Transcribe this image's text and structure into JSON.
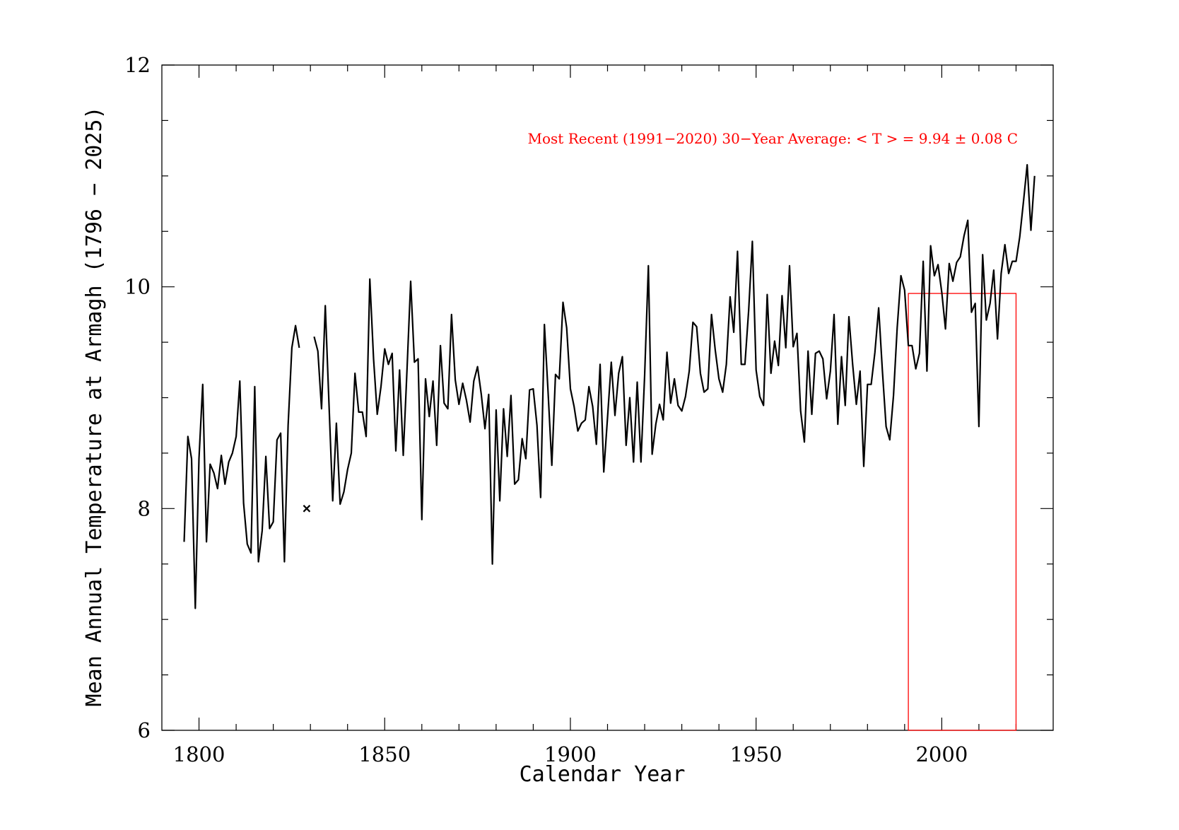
{
  "chart_data": {
    "type": "line",
    "title": "",
    "xlabel": "Calendar Year",
    "ylabel": "Mean Annual Temperature at Armagh (1796 − 2025)",
    "xlim": [
      1790,
      2030
    ],
    "ylim": [
      6,
      12
    ],
    "xticks": [
      "1800",
      "1850",
      "1900",
      "1950",
      "2000"
    ],
    "yticks": [
      "6",
      "8",
      "10",
      "12"
    ],
    "xtick_values": [
      1800,
      1850,
      1900,
      1950,
      2000
    ],
    "ytick_values": [
      6,
      8,
      10,
      12
    ],
    "grid": false,
    "series": [
      {
        "name": "1796-1827",
        "color": "#000000",
        "x": [
          1796,
          1797,
          1798,
          1799,
          1800,
          1801,
          1802,
          1803,
          1804,
          1805,
          1806,
          1807,
          1808,
          1809,
          1810,
          1811,
          1812,
          1813,
          1814,
          1815,
          1816,
          1817,
          1818,
          1819,
          1820,
          1821,
          1822,
          1823,
          1824,
          1825,
          1826,
          1827
        ],
        "values": [
          7.7,
          8.65,
          8.45,
          7.1,
          8.45,
          9.12,
          7.7,
          8.4,
          8.32,
          8.18,
          8.48,
          8.22,
          8.42,
          8.5,
          8.65,
          9.15,
          8.05,
          7.68,
          7.6,
          9.1,
          7.52,
          7.8,
          8.47,
          7.82,
          7.88,
          8.62,
          8.68,
          7.52,
          8.75,
          9.45,
          9.65,
          9.45
        ]
      },
      {
        "name": "1831-2025",
        "color": "#000000",
        "x": [
          1831,
          1832,
          1833,
          1834,
          1835,
          1836,
          1837,
          1838,
          1839,
          1840,
          1841,
          1842,
          1843,
          1844,
          1845,
          1846,
          1847,
          1848,
          1849,
          1850,
          1851,
          1852,
          1853,
          1854,
          1855,
          1856,
          1857,
          1858,
          1859,
          1860,
          1861,
          1862,
          1863,
          1864,
          1865,
          1866,
          1867,
          1868,
          1869,
          1870,
          1871,
          1872,
          1873,
          1874,
          1875,
          1876,
          1877,
          1878,
          1879,
          1880,
          1881,
          1882,
          1883,
          1884,
          1885,
          1886,
          1887,
          1888,
          1889,
          1890,
          1891,
          1892,
          1893,
          1894,
          1895,
          1896,
          1897,
          1898,
          1899,
          1900,
          1901,
          1902,
          1903,
          1904,
          1905,
          1906,
          1907,
          1908,
          1909,
          1910,
          1911,
          1912,
          1913,
          1914,
          1915,
          1916,
          1917,
          1918,
          1919,
          1920,
          1921,
          1922,
          1923,
          1924,
          1925,
          1926,
          1927,
          1928,
          1929,
          1930,
          1931,
          1932,
          1933,
          1934,
          1935,
          1936,
          1937,
          1938,
          1939,
          1940,
          1941,
          1942,
          1943,
          1944,
          1945,
          1946,
          1947,
          1948,
          1949,
          1950,
          1951,
          1952,
          1953,
          1954,
          1955,
          1956,
          1957,
          1958,
          1959,
          1960,
          1961,
          1962,
          1963,
          1964,
          1965,
          1966,
          1967,
          1968,
          1969,
          1970,
          1971,
          1972,
          1973,
          1974,
          1975,
          1976,
          1977,
          1978,
          1979,
          1980,
          1981,
          1982,
          1983,
          1984,
          1985,
          1986,
          1987,
          1988,
          1989,
          1990,
          1991,
          1992,
          1993,
          1994,
          1995,
          1996,
          1997,
          1998,
          1999,
          2000,
          2001,
          2002,
          2003,
          2004,
          2005,
          2006,
          2007,
          2008,
          2009,
          2010,
          2011,
          2012,
          2013,
          2014,
          2015,
          2016,
          2017,
          2018,
          2019,
          2020,
          2021,
          2022,
          2023,
          2024,
          2025
        ],
        "values": [
          9.55,
          9.42,
          8.9,
          9.83,
          8.95,
          8.07,
          8.77,
          8.04,
          8.15,
          8.35,
          8.5,
          9.22,
          8.87,
          8.87,
          8.65,
          10.07,
          9.35,
          8.85,
          9.1,
          9.44,
          9.3,
          9.4,
          8.52,
          9.25,
          8.48,
          9.25,
          10.05,
          9.32,
          9.35,
          7.9,
          9.17,
          8.83,
          9.15,
          8.57,
          9.47,
          8.95,
          8.9,
          9.75,
          9.16,
          8.94,
          9.13,
          8.98,
          8.78,
          9.15,
          9.28,
          9.03,
          8.72,
          9.03,
          7.5,
          8.89,
          8.07,
          8.9,
          8.47,
          9.02,
          8.22,
          8.26,
          8.63,
          8.45,
          9.07,
          9.08,
          8.75,
          8.1,
          9.66,
          9.05,
          8.39,
          9.21,
          9.17,
          9.86,
          9.63,
          9.08,
          8.92,
          8.7,
          8.77,
          8.8,
          9.1,
          8.92,
          8.58,
          9.3,
          8.33,
          8.82,
          9.32,
          8.84,
          9.22,
          9.37,
          8.57,
          9.0,
          8.42,
          9.14,
          8.42,
          9.2,
          10.19,
          8.49,
          8.76,
          8.94,
          8.8,
          9.41,
          8.95,
          9.17,
          8.93,
          8.88,
          9.01,
          9.24,
          9.68,
          9.64,
          9.22,
          9.05,
          9.08,
          9.75,
          9.43,
          9.17,
          9.05,
          9.3,
          9.91,
          9.59,
          10.32,
          9.3,
          9.3,
          9.79,
          10.41,
          9.25,
          9.01,
          8.93,
          9.93,
          9.22,
          9.51,
          9.29,
          9.92,
          9.45,
          10.19,
          9.46,
          9.58,
          8.88,
          8.6,
          9.42,
          8.85,
          9.4,
          9.42,
          9.35,
          8.99,
          9.24,
          9.75,
          8.76,
          9.37,
          8.93,
          9.73,
          9.3,
          8.94,
          9.24,
          8.38,
          9.12,
          9.12,
          9.41,
          9.81,
          9.25,
          8.74,
          8.62,
          9.02,
          9.63,
          10.1,
          9.97,
          9.47,
          9.47,
          9.26,
          9.4,
          10.23,
          9.24,
          10.37,
          10.1,
          10.2,
          9.95,
          9.62,
          10.21,
          10.05,
          10.22,
          10.27,
          10.46,
          10.6,
          9.77,
          9.85,
          8.74,
          10.29,
          9.7,
          9.85,
          10.15,
          9.53,
          10.12,
          10.38,
          10.12,
          10.23,
          10.23,
          10.45,
          10.77,
          11.1,
          10.51,
          11.0
        ]
      }
    ],
    "missing_year_markers": [
      {
        "x": 1829,
        "y": 8.0,
        "symbol": "×"
      }
    ],
    "reference_period": {
      "start": 1991,
      "end": 2020,
      "mean": 9.94,
      "color": "#ff0000",
      "annotation": "Most Recent (1991−2020) 30−Year Average: < T > = 9.94 ± 0.08 C"
    }
  }
}
